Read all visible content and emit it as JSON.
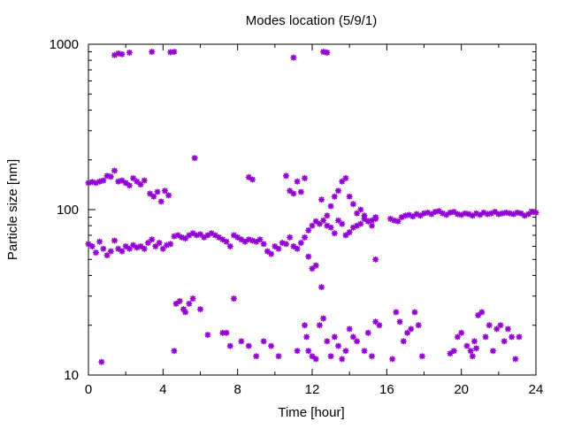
{
  "chart_data": {
    "type": "scatter",
    "title": "Modes location (5/9/1)",
    "xlabel": "Time [hour]",
    "ylabel": "Particle size [nm]",
    "xlim": [
      0,
      24
    ],
    "ylim": [
      10,
      1000
    ],
    "yscale": "log",
    "grid": false,
    "legend": "none",
    "x_ticks": [
      0,
      4,
      8,
      12,
      16,
      20,
      24
    ],
    "x_tick_labels": [
      "0",
      "4",
      "8",
      "12",
      "16",
      "20",
      "24"
    ],
    "y_ticks": [
      10,
      100,
      1000
    ],
    "y_tick_labels": [
      "10",
      "100",
      "1000"
    ],
    "marker_color": "#9400D3",
    "series": [
      {
        "values": [
          [
            0.0,
            145
          ],
          [
            0.2,
            147
          ],
          [
            0.4,
            145
          ],
          [
            0.6,
            148
          ],
          [
            0.8,
            150
          ],
          [
            1.0,
            160
          ],
          [
            1.2,
            158
          ],
          [
            1.4,
            172
          ],
          [
            1.6,
            148
          ],
          [
            1.8,
            150
          ],
          [
            2.0,
            145
          ],
          [
            2.2,
            140
          ],
          [
            2.4,
            155
          ],
          [
            2.6,
            148
          ],
          [
            2.8,
            142
          ],
          [
            3.0,
            150
          ],
          [
            3.3,
            125
          ],
          [
            3.5,
            120
          ],
          [
            3.7,
            128
          ],
          [
            3.9,
            112
          ],
          [
            4.1,
            130
          ],
          [
            4.3,
            122
          ],
          [
            8.6,
            157
          ],
          [
            8.8,
            152
          ],
          [
            10.6,
            160
          ],
          [
            10.8,
            130
          ],
          [
            11.0,
            125
          ],
          [
            11.2,
            148
          ],
          [
            11.4,
            128
          ],
          [
            11.6,
            155
          ],
          [
            12.5,
            115
          ],
          [
            12.8,
            92
          ],
          [
            13.0,
            105
          ],
          [
            13.2,
            120
          ],
          [
            13.4,
            130
          ],
          [
            13.6,
            148
          ],
          [
            13.8,
            155
          ],
          [
            14.0,
            120
          ],
          [
            14.2,
            108
          ],
          [
            14.4,
            95
          ],
          [
            14.6,
            100
          ],
          [
            14.8,
            92
          ],
          [
            15.0,
            85
          ],
          [
            15.2,
            80
          ],
          [
            15.4,
            88
          ],
          [
            5.7,
            205
          ]
        ]
      },
      {
        "values": [
          [
            0.0,
            62
          ],
          [
            0.2,
            60
          ],
          [
            0.4,
            55
          ],
          [
            0.6,
            64
          ],
          [
            0.8,
            58
          ],
          [
            1.0,
            53
          ],
          [
            1.2,
            56
          ],
          [
            1.4,
            65
          ],
          [
            1.6,
            58
          ],
          [
            1.8,
            56
          ],
          [
            2.0,
            60
          ],
          [
            2.2,
            58
          ],
          [
            2.4,
            61
          ],
          [
            2.6,
            59
          ],
          [
            2.8,
            60
          ],
          [
            3.0,
            58
          ],
          [
            3.2,
            63
          ],
          [
            3.4,
            66
          ],
          [
            3.6,
            60
          ],
          [
            3.8,
            63
          ],
          [
            4.0,
            58
          ],
          [
            4.2,
            61
          ],
          [
            4.4,
            62
          ],
          [
            4.6,
            69
          ],
          [
            4.8,
            70
          ],
          [
            5.0,
            68
          ],
          [
            5.2,
            67
          ],
          [
            5.4,
            70
          ],
          [
            5.6,
            72
          ],
          [
            5.8,
            70
          ],
          [
            6.0,
            71
          ],
          [
            6.2,
            68
          ],
          [
            6.4,
            70
          ],
          [
            6.6,
            72
          ],
          [
            6.8,
            70
          ],
          [
            7.0,
            68
          ],
          [
            7.2,
            66
          ],
          [
            7.4,
            64
          ],
          [
            7.6,
            60
          ],
          [
            7.8,
            70
          ],
          [
            8.0,
            68
          ],
          [
            8.2,
            66
          ],
          [
            8.4,
            64
          ],
          [
            8.6,
            66
          ],
          [
            8.8,
            65
          ],
          [
            9.0,
            64
          ],
          [
            9.2,
            66
          ],
          [
            9.4,
            62
          ],
          [
            9.6,
            56
          ],
          [
            9.8,
            54
          ],
          [
            10.0,
            60
          ],
          [
            10.2,
            58
          ],
          [
            10.4,
            63
          ],
          [
            10.6,
            62
          ],
          [
            10.8,
            68
          ],
          [
            11.0,
            60
          ],
          [
            11.2,
            58
          ],
          [
            11.4,
            63
          ],
          [
            11.6,
            68
          ],
          [
            11.8,
            75
          ],
          [
            12.0,
            80
          ],
          [
            12.2,
            85
          ],
          [
            12.4,
            82
          ],
          [
            12.6,
            86
          ],
          [
            12.8,
            80
          ],
          [
            13.0,
            78
          ],
          [
            13.2,
            72
          ],
          [
            13.4,
            86
          ],
          [
            13.6,
            82
          ],
          [
            13.8,
            70
          ],
          [
            14.0,
            73
          ],
          [
            14.2,
            78
          ],
          [
            14.4,
            80
          ],
          [
            14.6,
            82
          ],
          [
            14.8,
            88
          ],
          [
            15.0,
            85
          ],
          [
            15.2,
            86
          ],
          [
            15.4,
            90
          ],
          [
            16.2,
            88
          ],
          [
            16.4,
            86
          ],
          [
            16.6,
            85
          ],
          [
            16.8,
            90
          ],
          [
            17.0,
            92
          ],
          [
            17.2,
            93
          ],
          [
            17.4,
            91
          ],
          [
            17.6,
            94
          ],
          [
            17.8,
            92
          ],
          [
            18.0,
            95
          ],
          [
            18.2,
            96
          ],
          [
            18.4,
            94
          ],
          [
            18.6,
            97
          ],
          [
            18.8,
            98
          ],
          [
            19.0,
            95
          ],
          [
            19.2,
            93
          ],
          [
            19.4,
            96
          ],
          [
            19.6,
            97
          ],
          [
            19.8,
            94
          ],
          [
            20.0,
            93
          ],
          [
            20.2,
            95
          ],
          [
            20.4,
            94
          ],
          [
            20.6,
            92
          ],
          [
            20.8,
            95
          ],
          [
            21.0,
            93
          ],
          [
            21.2,
            96
          ],
          [
            21.4,
            94
          ],
          [
            21.6,
            95
          ],
          [
            21.8,
            97
          ],
          [
            22.0,
            94
          ],
          [
            22.2,
            95
          ],
          [
            22.4,
            96
          ],
          [
            22.6,
            95
          ],
          [
            22.8,
            94
          ],
          [
            23.0,
            96
          ],
          [
            23.2,
            95
          ],
          [
            23.4,
            92
          ],
          [
            23.6,
            94
          ],
          [
            23.8,
            97
          ],
          [
            24.0,
            96
          ],
          [
            15.4,
            50
          ],
          [
            11.8,
            52
          ],
          [
            12.2,
            46
          ],
          [
            12.0,
            44
          ]
        ]
      },
      {
        "values": [
          [
            0.7,
            12
          ],
          [
            4.6,
            14
          ],
          [
            4.7,
            27
          ],
          [
            4.9,
            28
          ],
          [
            5.1,
            25
          ],
          [
            5.2,
            24
          ],
          [
            5.4,
            27
          ],
          [
            5.6,
            29
          ],
          [
            6.0,
            25
          ],
          [
            6.4,
            17.5
          ],
          [
            7.2,
            18
          ],
          [
            7.4,
            18
          ],
          [
            7.6,
            15
          ],
          [
            7.8,
            29
          ],
          [
            8.2,
            16
          ],
          [
            8.6,
            15
          ],
          [
            9.0,
            13
          ],
          [
            9.4,
            16
          ],
          [
            9.8,
            15
          ],
          [
            10.2,
            13
          ],
          [
            11.2,
            14
          ],
          [
            11.6,
            20
          ],
          [
            11.7,
            17
          ],
          [
            11.8,
            14
          ],
          [
            12.0,
            13
          ],
          [
            12.2,
            12.5
          ],
          [
            12.4,
            20
          ],
          [
            12.5,
            34
          ],
          [
            12.6,
            22
          ],
          [
            12.8,
            16
          ],
          [
            13.0,
            13
          ],
          [
            13.2,
            17
          ],
          [
            13.4,
            15
          ],
          [
            13.6,
            12.5
          ],
          [
            13.8,
            14
          ],
          [
            14.0,
            19
          ],
          [
            14.2,
            17
          ],
          [
            14.4,
            16
          ],
          [
            14.8,
            14
          ],
          [
            15.0,
            18
          ],
          [
            15.2,
            13
          ],
          [
            15.4,
            21
          ],
          [
            15.6,
            20
          ],
          [
            16.3,
            12.5
          ],
          [
            16.5,
            24
          ],
          [
            16.7,
            21
          ],
          [
            16.9,
            16
          ],
          [
            17.1,
            18
          ],
          [
            17.3,
            19
          ],
          [
            17.5,
            24
          ],
          [
            17.7,
            20
          ],
          [
            17.9,
            13
          ],
          [
            19.4,
            13.5
          ],
          [
            19.6,
            14
          ],
          [
            19.8,
            17
          ],
          [
            20.0,
            18
          ],
          [
            20.3,
            15
          ],
          [
            20.5,
            14
          ],
          [
            20.7,
            16
          ],
          [
            20.9,
            23
          ],
          [
            21.1,
            24
          ],
          [
            21.3,
            17
          ],
          [
            21.5,
            20
          ],
          [
            21.7,
            14
          ],
          [
            21.9,
            19
          ],
          [
            22.1,
            20
          ],
          [
            22.3,
            16
          ],
          [
            22.5,
            19
          ],
          [
            22.7,
            17
          ],
          [
            22.9,
            12.5
          ],
          [
            23.1,
            17
          ],
          [
            20.8,
            14.5
          ],
          [
            20.6,
            13
          ]
        ]
      },
      {
        "values": [
          [
            1.4,
            860
          ],
          [
            1.6,
            880
          ],
          [
            1.8,
            870
          ],
          [
            2.2,
            890
          ],
          [
            3.4,
            900
          ],
          [
            4.4,
            895
          ],
          [
            4.6,
            900
          ],
          [
            11.0,
            830
          ],
          [
            12.6,
            900
          ],
          [
            12.8,
            890
          ],
          [
            12.7,
            895
          ]
        ]
      }
    ]
  }
}
